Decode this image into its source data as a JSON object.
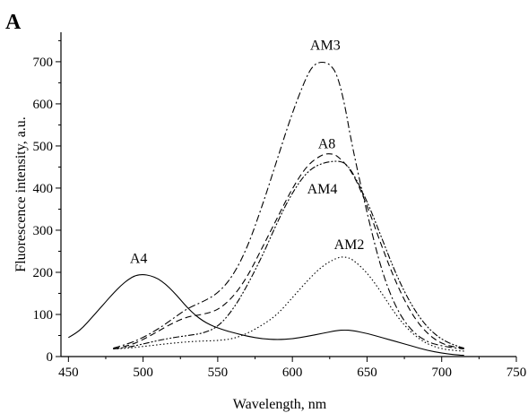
{
  "panel_label": "A",
  "chart_data": {
    "type": "line",
    "xlabel": "Wavelength, nm",
    "ylabel": "Fluorescence intensity, a.u.",
    "xlim": [
      445,
      750
    ],
    "ylim": [
      0,
      770
    ],
    "xticks": [
      450,
      500,
      550,
      600,
      650,
      700,
      750
    ],
    "yticks": [
      0,
      100,
      200,
      300,
      400,
      500,
      600,
      700
    ],
    "grid": false,
    "series": [
      {
        "name": "A4",
        "dash": "solid",
        "x": [
          450,
          455,
          460,
          465,
          470,
          475,
          480,
          485,
          490,
          495,
          500,
          505,
          510,
          515,
          520,
          525,
          530,
          535,
          540,
          545,
          550,
          555,
          560,
          570,
          580,
          590,
          600,
          610,
          620,
          630,
          635,
          640,
          650,
          660,
          670,
          680,
          690,
          700,
          710,
          715
        ],
        "y": [
          45,
          55,
          70,
          90,
          110,
          130,
          150,
          168,
          183,
          193,
          195,
          192,
          185,
          172,
          155,
          135,
          115,
          98,
          85,
          75,
          68,
          62,
          57,
          48,
          42,
          40,
          42,
          48,
          55,
          62,
          63,
          62,
          55,
          45,
          35,
          25,
          15,
          8,
          4,
          3
        ]
      },
      {
        "name": "AM3",
        "dash": "dashdot",
        "x": [
          480,
          490,
          500,
          510,
          520,
          530,
          540,
          550,
          560,
          570,
          580,
          590,
          600,
          610,
          615,
          620,
          625,
          630,
          635,
          640,
          650,
          660,
          670,
          680,
          690,
          700,
          710,
          715
        ],
        "y": [
          20,
          30,
          45,
          65,
          90,
          115,
          130,
          150,
          190,
          260,
          360,
          470,
          580,
          670,
          695,
          700,
          695,
          670,
          600,
          500,
          340,
          200,
          110,
          60,
          35,
          25,
          20,
          18
        ]
      },
      {
        "name": "A8",
        "dash": "dashed",
        "x": [
          480,
          490,
          500,
          510,
          520,
          530,
          540,
          550,
          560,
          570,
          580,
          590,
          600,
          610,
          620,
          625,
          630,
          640,
          650,
          660,
          670,
          680,
          690,
          700,
          710,
          715
        ],
        "y": [
          18,
          25,
          40,
          60,
          80,
          95,
          100,
          110,
          140,
          190,
          260,
          330,
          400,
          455,
          480,
          482,
          478,
          440,
          360,
          260,
          170,
          100,
          55,
          30,
          22,
          20
        ]
      },
      {
        "name": "AM4",
        "dash": "dashdotdot",
        "x": [
          480,
          490,
          500,
          510,
          520,
          530,
          540,
          550,
          560,
          570,
          580,
          590,
          600,
          610,
          620,
          630,
          635,
          640,
          650,
          660,
          670,
          680,
          690,
          700,
          710,
          715
        ],
        "y": [
          18,
          22,
          30,
          38,
          45,
          50,
          55,
          70,
          110,
          170,
          240,
          320,
          390,
          440,
          460,
          465,
          460,
          440,
          370,
          280,
          190,
          120,
          70,
          40,
          25,
          20
        ]
      },
      {
        "name": "AM2",
        "dash": "dotted",
        "x": [
          480,
          490,
          500,
          510,
          520,
          530,
          540,
          550,
          560,
          570,
          580,
          590,
          600,
          610,
          620,
          630,
          635,
          640,
          650,
          660,
          670,
          680,
          690,
          700,
          710,
          715
        ],
        "y": [
          18,
          20,
          24,
          28,
          32,
          35,
          37,
          38,
          42,
          55,
          75,
          100,
          140,
          180,
          215,
          235,
          237,
          232,
          200,
          150,
          95,
          55,
          30,
          18,
          14,
          13
        ]
      }
    ],
    "annotations": [
      {
        "text": "AM3",
        "x": 622,
        "y": 728
      },
      {
        "text": "A8",
        "x": 623,
        "y": 495
      },
      {
        "text": "AM4",
        "x": 620,
        "y": 387
      },
      {
        "text": "AM2",
        "x": 638,
        "y": 255
      },
      {
        "text": "A4",
        "x": 497,
        "y": 222
      }
    ]
  }
}
